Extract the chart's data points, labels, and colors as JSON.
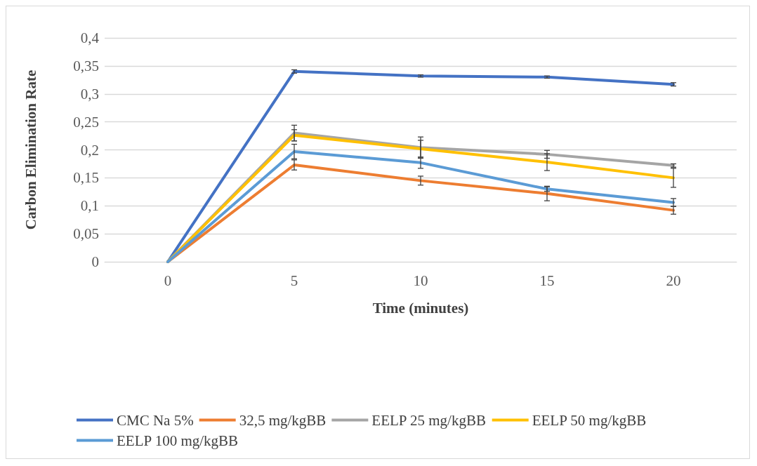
{
  "chart_data": {
    "type": "line",
    "xlabel": "Time (minutes)",
    "ylabel": "Carbon Elimination Rate",
    "categories": [
      "0",
      "5",
      "10",
      "15",
      "20"
    ],
    "series": [
      {
        "name": "CMC Na 5%",
        "color": "#4472c4",
        "values": [
          0,
          0.34,
          0.332,
          0.33,
          0.317
        ],
        "errors": [
          null,
          0.003,
          0.002,
          0.002,
          0.003
        ]
      },
      {
        "name": "32,5 mg/kgBB",
        "color": "#ed7d31",
        "values": [
          0,
          0.173,
          0.145,
          0.122,
          0.092
        ],
        "errors": [
          null,
          0.009,
          0.008,
          0.013,
          0.007
        ]
      },
      {
        "name": "EELP 25 mg/kgBB",
        "color": "#a5a5a5",
        "values": [
          0,
          0.23,
          0.204,
          0.192,
          0.172
        ],
        "errors": [
          null,
          0.014,
          0.019,
          0.007,
          0.003
        ]
      },
      {
        "name": "EELP 50 mg/kgBB",
        "color": "#ffc000",
        "values": [
          0,
          0.226,
          0.202,
          0.178,
          0.15
        ],
        "errors": [
          null,
          0.01,
          0.015,
          0.015,
          0.017
        ]
      },
      {
        "name": "EELP 100 mg/kgBB",
        "color": "#5b9bd5",
        "values": [
          0,
          0.197,
          0.177,
          0.13,
          0.106
        ],
        "errors": [
          null,
          0.013,
          0.01,
          0.004,
          0.007
        ]
      }
    ],
    "ylim": [
      0,
      0.4
    ],
    "yticks": [
      {
        "value": 0,
        "label": "0"
      },
      {
        "value": 0.05,
        "label": "0,05"
      },
      {
        "value": 0.1,
        "label": "0,1"
      },
      {
        "value": 0.15,
        "label": "0,15"
      },
      {
        "value": 0.2,
        "label": "0,2"
      },
      {
        "value": 0.25,
        "label": "0,25"
      },
      {
        "value": 0.3,
        "label": "0,3"
      },
      {
        "value": 0.35,
        "label": "0,35"
      },
      {
        "value": 0.4,
        "label": "0,4"
      }
    ],
    "grid": "y",
    "legend": "bottom",
    "marker": "none",
    "line_style": "solid"
  }
}
